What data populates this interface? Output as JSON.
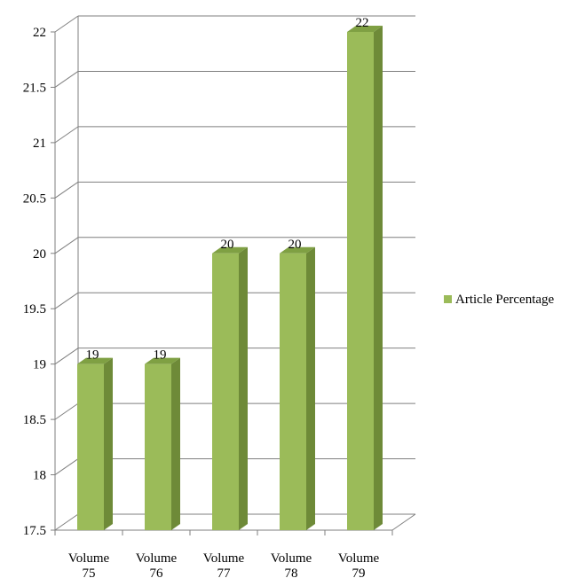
{
  "chart_data": {
    "type": "bar",
    "categories": [
      [
        "Volume",
        "75"
      ],
      [
        "Volume",
        "76"
      ],
      [
        "Volume",
        "77"
      ],
      [
        "Volume",
        "78"
      ],
      [
        "Volume",
        "79"
      ]
    ],
    "series": [
      {
        "name": "Article Percentage",
        "values": [
          19,
          19,
          20,
          20,
          22
        ]
      }
    ],
    "data_labels": [
      "19",
      "19",
      "20",
      "20",
      "22"
    ],
    "yticks": [
      17.5,
      18,
      18.5,
      19,
      19.5,
      20,
      20.5,
      21,
      21.5,
      22
    ],
    "ytick_labels": [
      "17.5",
      "18",
      "18.5",
      "19",
      "19.5",
      "20",
      "20.5",
      "21",
      "21.5",
      "22"
    ],
    "ylim": [
      17.5,
      22
    ],
    "grid": true,
    "legend_position": "right",
    "bar_style": "3d",
    "colors": {
      "bar_front": "#9BBB59",
      "bar_side": "#6E8A38",
      "bar_top": "#7FA043",
      "grid": "#7f7f7f",
      "axis": "#7f7f7f"
    }
  }
}
